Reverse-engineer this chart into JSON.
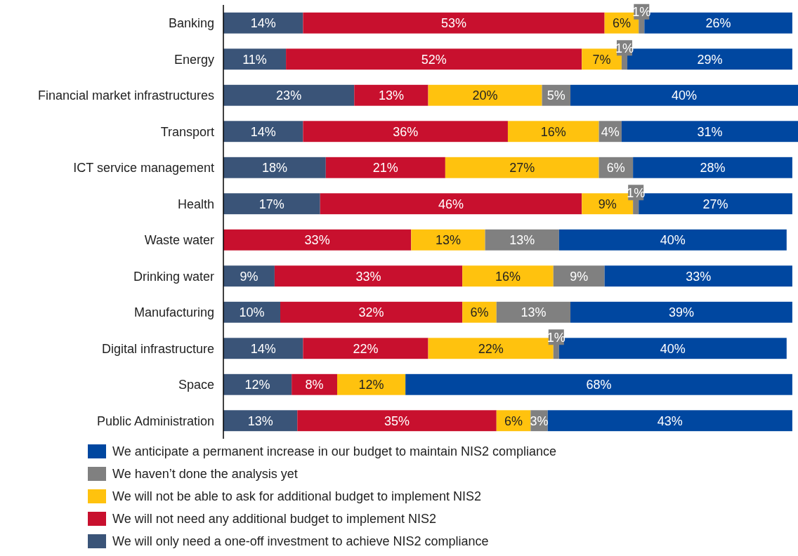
{
  "chart_data": {
    "type": "bar",
    "orientation": "horizontal",
    "stacked": true,
    "legend": "bottom",
    "categories": [
      "Banking",
      "Energy",
      "Financial market infrastructures",
      "Transport",
      "ICT service management",
      "Health",
      "Waste water",
      "Drinking water",
      "Manufacturing",
      "Digital infrastructure",
      "Space",
      "Public Administration"
    ],
    "series": [
      {
        "name": "We will only need a one-off investment to achieve NIS2 compliance",
        "color": "#3a5478",
        "values": [
          14,
          11,
          23,
          14,
          18,
          17,
          null,
          9,
          10,
          14,
          12,
          13
        ],
        "value_labels": [
          "14%",
          "11%",
          "23%",
          "14%",
          "18%",
          "17%",
          null,
          "9%",
          "10%",
          "14%",
          "12%",
          "13%"
        ]
      },
      {
        "name": "We will not need any additional budget to implement NIS2",
        "color": "#c8102e",
        "values": [
          53,
          52,
          13,
          36,
          21,
          46,
          33,
          33,
          32,
          22,
          8,
          35
        ],
        "value_labels": [
          "53%",
          "52%",
          "13%",
          "36%",
          "21%",
          "46%",
          "33%",
          "33%",
          "32%",
          "22%",
          "8%",
          "35%"
        ]
      },
      {
        "name": "We will not be able to ask for additional budget to implement NIS2",
        "color": "#ffc20e",
        "values": [
          6,
          7,
          20,
          16,
          27,
          9,
          13,
          16,
          6,
          22,
          12,
          6
        ],
        "value_labels": [
          "6%",
          "7%",
          "20%",
          "16%",
          "27%",
          "9%",
          "13%",
          "16%",
          "6%",
          "22%",
          "12%",
          "6%"
        ]
      },
      {
        "name": "We haven’t done the analysis yet",
        "color": "#808080",
        "values": [
          1,
          1,
          5,
          4,
          6,
          1,
          13,
          9,
          13,
          1,
          null,
          3
        ],
        "value_labels": [
          "1%",
          "1%",
          "5%",
          "4%",
          "6%",
          "1%",
          "13%",
          "9%",
          "13%",
          "1%",
          null,
          "3%"
        ]
      },
      {
        "name": "We anticipate a permanent increase in our budget to maintain NIS2 compliance",
        "color": "#0047a0",
        "values": [
          26,
          29,
          40,
          31,
          28,
          27,
          40,
          33,
          39,
          40,
          68,
          43
        ],
        "value_labels": [
          "26%",
          "29%",
          "40%",
          "31%",
          "28%",
          "27%",
          "40%",
          "33%",
          "39%",
          "40%",
          "68%",
          "43%"
        ]
      }
    ]
  }
}
